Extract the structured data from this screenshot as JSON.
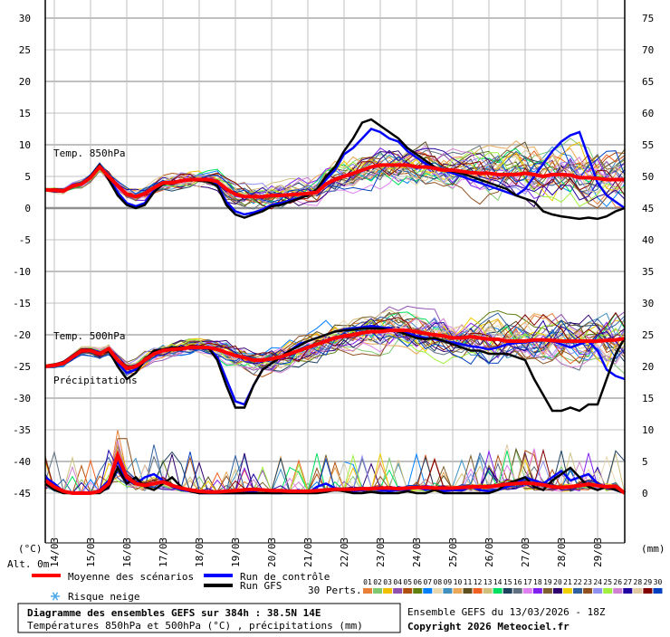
{
  "chart_data": {
    "type": "line",
    "title": "Diagramme des ensembles GEFS sur 384h : 38.5N 14E",
    "subtitle": "Températures 850hPa et 500hPa (°C) , précipitations (mm)",
    "run_info": "Ensemble GEFS du 13/03/2026 - 18Z",
    "copyright": "Copyright 2026 Meteociel.fr",
    "step_hours": 6,
    "left_axis": {
      "unit": "(°C)",
      "ticks": [
        30,
        25,
        20,
        15,
        10,
        5,
        0,
        -5,
        -10,
        -15,
        -20,
        -25,
        -30,
        -35,
        -40,
        -45
      ],
      "range": [
        -45,
        30
      ]
    },
    "right_axis": {
      "unit": "(mm)",
      "ticks": [
        75,
        70,
        65,
        60,
        55,
        50,
        45,
        40,
        35,
        30,
        25,
        20,
        15,
        10,
        5,
        0
      ],
      "range": [
        0,
        75
      ]
    },
    "altitude": "Alt. 0m",
    "x_labels": [
      "14/03",
      "15/03",
      "16/03",
      "17/03",
      "18/03",
      "19/03",
      "20/03",
      "21/03",
      "22/03",
      "23/03",
      "24/03",
      "25/03",
      "26/03",
      "27/03",
      "28/03",
      "29/03"
    ],
    "panel_labels": {
      "t850": "Temp. 850hPa",
      "t500": "Temp. 500hPa",
      "precip": "Précipitations"
    },
    "series": {
      "t850": {
        "mean": [
          2.9,
          2.8,
          2.7,
          3.5,
          3.8,
          4.8,
          6.5,
          5.0,
          3.5,
          2.2,
          1.8,
          2.3,
          3.2,
          4.0,
          4.0,
          4.3,
          4.5,
          4.5,
          4.5,
          4.2,
          3.0,
          2.2,
          1.8,
          1.8,
          1.8,
          2.0,
          2.0,
          2.1,
          2.2,
          2.3,
          2.5,
          3.8,
          4.5,
          5.0,
          5.5,
          6.0,
          6.5,
          6.8,
          6.8,
          6.8,
          6.8,
          6.5,
          6.5,
          6.3,
          6.0,
          6.0,
          5.8,
          5.6,
          5.5,
          5.5,
          5.3,
          5.3,
          5.3,
          5.5,
          5.3,
          5.0,
          5.3,
          5.3,
          5.2,
          4.8,
          4.8,
          4.7,
          4.5,
          4.5,
          4.5
        ],
        "gfs": [
          2.9,
          2.8,
          2.6,
          3.4,
          3.9,
          5.0,
          6.8,
          4.5,
          2.0,
          0.5,
          0,
          0.5,
          2.5,
          3.8,
          4.0,
          4.2,
          4.5,
          4.3,
          4.2,
          3.5,
          0.5,
          -1.0,
          -1.5,
          -1.0,
          -0.5,
          0.3,
          0.5,
          1.0,
          1.5,
          2.0,
          3.0,
          5.0,
          6.5,
          9.0,
          11.0,
          13.5,
          14.0,
          13.0,
          12.0,
          11.0,
          9.5,
          8.5,
          7.5,
          6.5,
          6.0,
          5.8,
          5.5,
          5.0,
          4.5,
          4.0,
          3.5,
          3.0,
          2.0,
          1.5,
          1.0,
          -0.5,
          -1.0,
          -1.3,
          -1.5,
          -1.7,
          -1.5,
          -1.7,
          -1.3,
          -0.5,
          0.0
        ],
        "control": [
          2.9,
          2.8,
          2.6,
          3.4,
          3.8,
          4.8,
          6.6,
          4.8,
          2.5,
          0.8,
          0.3,
          0.8,
          2.8,
          3.9,
          4.0,
          4.3,
          4.5,
          4.4,
          4.3,
          3.8,
          1.0,
          -0.5,
          -1.0,
          -0.7,
          -0.2,
          0.5,
          0.8,
          1.2,
          1.6,
          2.0,
          2.8,
          4.5,
          6.0,
          8.5,
          9.5,
          11.0,
          12.5,
          12.0,
          11.0,
          10.5,
          9.0,
          8.0,
          7.0,
          6.5,
          6.0,
          5.5,
          5.0,
          4.5,
          4.0,
          3.5,
          3.0,
          2.5,
          2.0,
          3.0,
          5.0,
          7.0,
          9.0,
          10.5,
          11.5,
          12.0,
          8.0,
          4.0,
          2.0,
          1.0,
          0.0
        ]
      },
      "t500": {
        "mean": [
          -25,
          -24.8,
          -24.5,
          -23.5,
          -22.5,
          -22.5,
          -23,
          -22.2,
          -24,
          -25.3,
          -25,
          -24,
          -23,
          -22.5,
          -22.3,
          -22.2,
          -22,
          -22,
          -22,
          -22.3,
          -22.8,
          -23.3,
          -23.6,
          -24,
          -24,
          -23.8,
          -23.5,
          -23,
          -22.5,
          -22,
          -21.5,
          -21,
          -20.5,
          -20.2,
          -20,
          -19.7,
          -19.5,
          -19.5,
          -19.3,
          -19.3,
          -19.3,
          -19.5,
          -19.8,
          -20,
          -20.2,
          -20.5,
          -20.5,
          -20.3,
          -20.5,
          -20.7,
          -20.7,
          -21,
          -21,
          -21,
          -20.8,
          -20.8,
          -20.9,
          -21,
          -21,
          -21,
          -21,
          -21,
          -20.9,
          -20.8,
          -20.6
        ],
        "gfs": [
          -25,
          -24.7,
          -24.3,
          -23.3,
          -22.3,
          -22.3,
          -23,
          -22.5,
          -25,
          -27,
          -26,
          -24,
          -22.5,
          -22.3,
          -22,
          -22,
          -22,
          -21.8,
          -22,
          -24,
          -28,
          -31.5,
          -31.5,
          -28,
          -25.5,
          -24.5,
          -23.5,
          -22.5,
          -21.8,
          -21,
          -20.5,
          -20,
          -19.5,
          -19.3,
          -19.2,
          -19,
          -19,
          -19,
          -19.2,
          -19.5,
          -20,
          -20.5,
          -20.7,
          -20.5,
          -21,
          -21.5,
          -22,
          -22.5,
          -22.5,
          -23,
          -23,
          -23,
          -23.5,
          -24,
          -27,
          -29.5,
          -32,
          -32,
          -31.5,
          -32,
          -31,
          -31,
          -27,
          -23,
          -20.5
        ],
        "control": [
          -25,
          -24.7,
          -24.3,
          -23.3,
          -22.5,
          -22.3,
          -22.8,
          -22.5,
          -24.5,
          -26,
          -25.5,
          -24,
          -22.5,
          -22.3,
          -22,
          -22,
          -22,
          -21.8,
          -22,
          -23.5,
          -27,
          -30.5,
          -31,
          -28,
          -25.5,
          -24.5,
          -23.5,
          -22.5,
          -21.5,
          -21,
          -20.5,
          -20,
          -19.5,
          -19.2,
          -19,
          -18.8,
          -18.6,
          -18.8,
          -19,
          -19.3,
          -19.7,
          -20.2,
          -20.5,
          -20.7,
          -21,
          -21.2,
          -21.5,
          -21.8,
          -22,
          -22.3,
          -22,
          -21.5,
          -21.3,
          -21.2,
          -21.0,
          -20.8,
          -21.0,
          -21.5,
          -22.0,
          -21.5,
          -21.0,
          -22.5,
          -25.5,
          -26.5,
          -27
        ]
      },
      "precip": {
        "mean": [
          2,
          1,
          0.3,
          0,
          0,
          0,
          0.3,
          1.5,
          6,
          2.5,
          1.5,
          1.2,
          1.5,
          1.8,
          1.2,
          0.8,
          0.5,
          0.3,
          0.2,
          0.2,
          0.3,
          0.4,
          0.5,
          0.6,
          0.5,
          0.4,
          0.4,
          0.3,
          0.3,
          0.3,
          0.4,
          0.5,
          0.6,
          0.6,
          0.6,
          0.7,
          0.7,
          0.8,
          0.8,
          0.7,
          0.8,
          0.9,
          0.9,
          0.8,
          0.8,
          0.8,
          0.9,
          1.0,
          1.0,
          1.0,
          1.2,
          1.4,
          1.5,
          1.6,
          1.5,
          1.3,
          1.0,
          0.9,
          1.0,
          1.2,
          1.4,
          1.2,
          1.0,
          1.1,
          0.0
        ],
        "gfs": [
          1.5,
          0.5,
          0,
          0,
          0,
          0,
          0,
          1,
          4,
          1.5,
          2.5,
          1,
          0.5,
          1.5,
          2.5,
          1,
          0.3,
          0,
          0,
          0,
          0,
          0,
          0,
          0,
          0,
          0,
          0,
          0,
          0,
          0,
          0,
          0.2,
          0.5,
          0.3,
          0,
          0,
          0.2,
          0,
          0,
          0,
          0.3,
          0,
          0,
          0.5,
          0,
          0,
          0,
          0,
          0,
          0,
          0.5,
          1.5,
          2,
          2.5,
          1,
          0.5,
          2,
          3,
          4,
          2.5,
          1,
          0.5,
          1,
          0.5,
          0
        ],
        "control": [
          2.5,
          1.5,
          0.3,
          0,
          0,
          0,
          0.5,
          2,
          5,
          2,
          1.5,
          2.5,
          3,
          2,
          1,
          0.5,
          0.3,
          0,
          0,
          0,
          0,
          0,
          0,
          0.3,
          0.5,
          0,
          0,
          0.2,
          0.5,
          0,
          1,
          1.5,
          0.8,
          0.5,
          0.3,
          0.5,
          0.8,
          0.5,
          0.3,
          0.5,
          0.5,
          1,
          0.5,
          0.8,
          0.3,
          0.5,
          0.5,
          1,
          0.5,
          0.3,
          0.5,
          1,
          1.5,
          2.5,
          2,
          1.5,
          2.5,
          3.5,
          2,
          2.5,
          3,
          1.5,
          1,
          0.5,
          0
        ]
      }
    },
    "legend": {
      "mean": {
        "label": "Moyenne des scénarios",
        "color": "#ff0000"
      },
      "control": {
        "label": "Run de contrôle",
        "color": "#0000ff"
      },
      "gfs": {
        "label": "Run GFS",
        "color": "#000000"
      },
      "snow": {
        "label": "Risque neige",
        "icon": "snowflake-icon",
        "color": "#4aa8e8"
      },
      "perts_label": "30 Perts.",
      "members": [
        {
          "id": "01",
          "color": "#e8803a"
        },
        {
          "id": "02",
          "color": "#80c870"
        },
        {
          "id": "03",
          "color": "#f0c000"
        },
        {
          "id": "04",
          "color": "#9050b0"
        },
        {
          "id": "05",
          "color": "#b05010"
        },
        {
          "id": "06",
          "color": "#608010"
        },
        {
          "id": "07",
          "color": "#0080ff"
        },
        {
          "id": "08",
          "color": "#e8d8b0"
        },
        {
          "id": "09",
          "color": "#4090c0"
        },
        {
          "id": "10",
          "color": "#e8a858"
        },
        {
          "id": "11",
          "color": "#605020"
        },
        {
          "id": "12",
          "color": "#f06020"
        },
        {
          "id": "13",
          "color": "#d0c080"
        },
        {
          "id": "14",
          "color": "#00e060"
        },
        {
          "id": "15",
          "color": "#204060"
        },
        {
          "id": "16",
          "color": "#607080"
        },
        {
          "id": "17",
          "color": "#e080f0"
        },
        {
          "id": "18",
          "color": "#8020f0"
        },
        {
          "id": "19",
          "color": "#806030"
        },
        {
          "id": "20",
          "color": "#300070"
        },
        {
          "id": "21",
          "color": "#f0d000"
        },
        {
          "id": "22",
          "color": "#3060a0"
        },
        {
          "id": "23",
          "color": "#905020"
        },
        {
          "id": "24",
          "color": "#9090f0"
        },
        {
          "id": "25",
          "color": "#a0f040"
        },
        {
          "id": "26",
          "color": "#d080d0"
        },
        {
          "id": "27",
          "color": "#2000a0"
        },
        {
          "id": "28",
          "color": "#e0c8a0"
        },
        {
          "id": "29",
          "color": "#800000"
        },
        {
          "id": "30",
          "color": "#0040c0"
        }
      ]
    }
  }
}
